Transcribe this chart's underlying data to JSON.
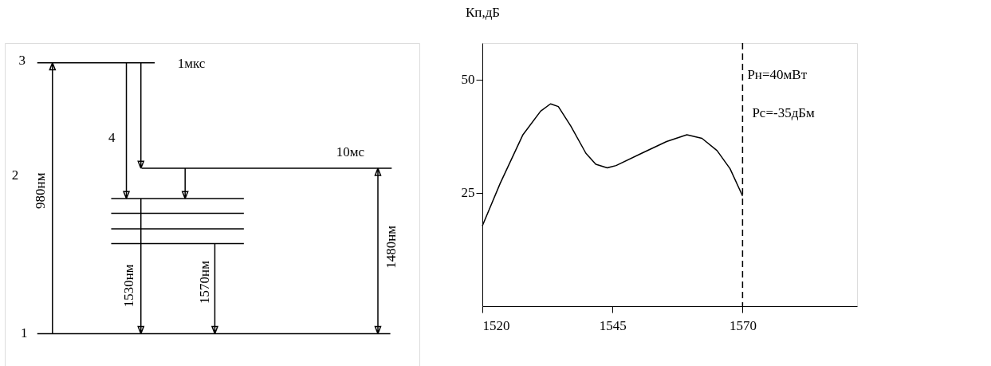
{
  "chart_data": [
    {
      "type": "other",
      "annotations": [
        "3",
        "2",
        "1",
        "4",
        "1мкс",
        "10мс",
        "980нм",
        "1530нм",
        "1570нм",
        "1480нм"
      ]
    },
    {
      "type": "line",
      "ylabel": "Кп,дБ",
      "xlim": [
        1520,
        1592
      ],
      "ylim": [
        0,
        58
      ],
      "xticks": [
        1520,
        1545,
        1570
      ],
      "yticks": [
        25,
        50
      ],
      "grid": false,
      "legend": false,
      "marker": "none",
      "line_style": "solid",
      "x": [
        1520,
        1523.4,
        1527.8,
        1531.2,
        1533.1,
        1534.6,
        1537,
        1539.9,
        1541.8,
        1544,
        1545.7,
        1550.6,
        1555.4,
        1559.3,
        1562.2,
        1565.1,
        1567.6,
        1570
      ],
      "series": [
        {
          "color": "#000000",
          "values": [
            17.7,
            27,
            37.8,
            43,
            44.6,
            44,
            39.7,
            33.7,
            31.3,
            30.5,
            31,
            33.7,
            36.3,
            37.8,
            37,
            34.3,
            30.3,
            24.3
          ]
        }
      ],
      "ref_lines": [
        {
          "axis": "x",
          "value": 1570,
          "color": "#000000",
          "line_style": "dashed"
        }
      ],
      "annotations": [
        "Pн=40мВт",
        "Pс=-35дБм"
      ]
    }
  ]
}
